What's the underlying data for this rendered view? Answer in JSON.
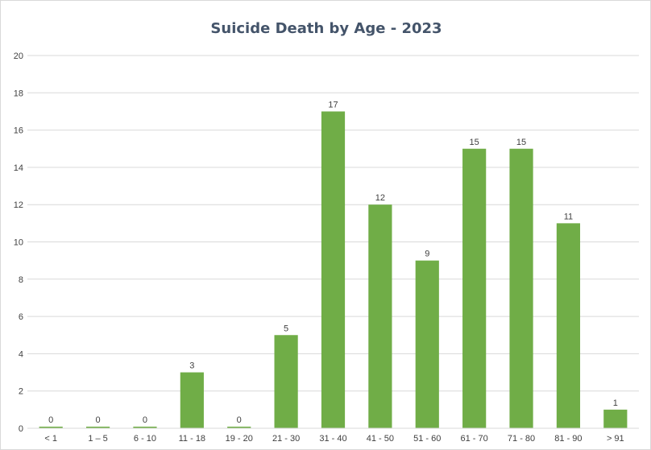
{
  "chart_data": {
    "type": "bar",
    "title": "Suicide Death by Age - 2023",
    "xlabel": "",
    "ylabel": "",
    "categories": [
      "< 1",
      "1 – 5",
      "6 - 10",
      "11 - 18",
      "19 - 20",
      "21 - 30",
      "31 - 40",
      "41 - 50",
      "51 - 60",
      "61 - 70",
      "71 - 80",
      "81 - 90",
      "> 91"
    ],
    "values": [
      0,
      0,
      0,
      3,
      0,
      5,
      17,
      12,
      9,
      15,
      15,
      11,
      1
    ],
    "ylim": [
      0,
      20
    ],
    "yticks": [
      0,
      2,
      4,
      6,
      8,
      10,
      12,
      14,
      16,
      18,
      20
    ],
    "grid": true,
    "legend": "none",
    "bar_color": "#70ad47",
    "grid_color": "#d9d9d9"
  }
}
